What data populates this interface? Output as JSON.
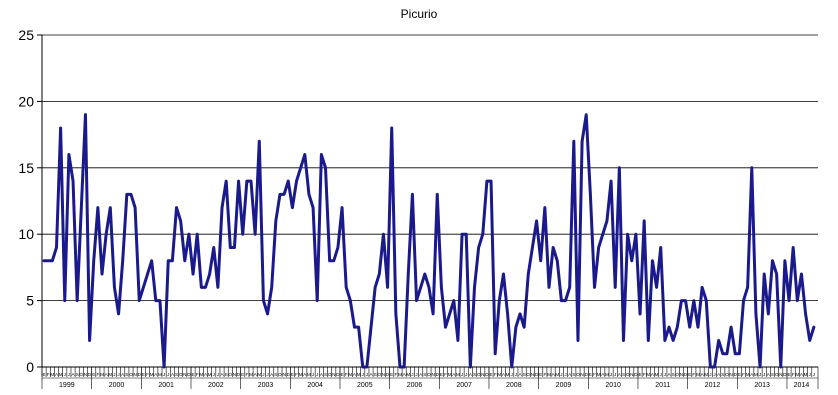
{
  "chart_data": {
    "type": "line",
    "title": "Picurio",
    "xlabel": "",
    "ylabel": "",
    "ylim": [
      0,
      25
    ],
    "yticks": [
      0,
      5,
      10,
      15,
      20,
      25
    ],
    "grid": "horizontal",
    "start": "1999-01",
    "month_letters": [
      "E",
      "F",
      "M",
      "A",
      "M",
      "J",
      "J",
      "A",
      "S",
      "O",
      "N",
      "D"
    ],
    "year_labels": [
      "1999",
      "2000",
      "2001",
      "2002",
      "2003",
      "2004",
      "2005",
      "2006",
      "2007",
      "2008",
      "2009",
      "2010",
      "2011",
      "2012",
      "2013",
      "2014"
    ],
    "line_color": "#1a1a8c",
    "values": [
      8,
      8,
      8,
      9,
      18,
      5,
      16,
      14,
      5,
      12,
      19,
      2,
      8,
      12,
      7,
      10,
      12,
      6,
      4,
      8,
      13,
      13,
      12,
      5,
      6,
      7,
      8,
      5,
      5,
      0,
      8,
      8,
      12,
      11,
      8,
      10,
      7,
      10,
      6,
      6,
      7,
      9,
      6,
      12,
      14,
      9,
      9,
      14,
      10,
      14,
      14,
      10,
      17,
      5,
      4,
      6,
      11,
      13,
      13,
      14,
      12,
      14,
      15,
      16,
      13,
      12,
      5,
      16,
      15,
      8,
      8,
      9,
      12,
      6,
      5,
      3,
      3,
      0,
      0,
      3,
      6,
      7,
      10,
      6,
      18,
      4,
      0,
      0,
      7,
      13,
      5,
      6,
      7,
      6,
      4,
      13,
      6,
      3,
      4,
      5,
      2,
      10,
      10,
      0,
      6,
      9,
      10,
      14,
      14,
      1,
      5,
      7,
      4,
      0,
      3,
      4,
      3,
      7,
      9,
      11,
      8,
      12,
      6,
      9,
      8,
      5,
      5,
      6,
      17,
      2,
      17,
      19,
      13,
      6,
      9,
      10,
      11,
      14,
      6,
      15,
      2,
      10,
      8,
      10,
      4,
      11,
      2,
      8,
      6,
      9,
      2,
      3,
      2,
      3,
      5,
      5,
      3,
      5,
      3,
      6,
      5,
      0,
      0,
      2,
      1,
      1,
      3,
      1,
      1,
      5,
      6,
      15,
      4,
      0,
      7,
      4,
      8,
      7,
      0,
      8,
      5,
      9,
      5,
      7,
      4,
      2,
      3
    ]
  }
}
